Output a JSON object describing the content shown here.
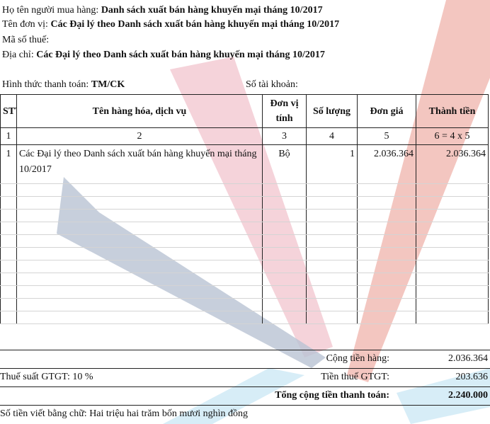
{
  "buyer": {
    "name_label": "Họ tên người mua hàng:",
    "name_value": "Danh sách xuất bán hàng khuyến mại tháng 10/2017",
    "unit_label": "Tên đơn vị:",
    "unit_value": "Các Đại lý theo Danh sách xuất bán hàng khuyến mại tháng 10/2017",
    "tax_label": "Mã số thuế:",
    "address_label": "Địa chỉ:",
    "address_value": "Các Đại lý theo Danh sách xuất bán hàng khuyến mại tháng 10/2017",
    "payment_label": "Hình thức thanh toán:",
    "payment_value": "TM/CK",
    "account_label": "Số tài khoản:"
  },
  "table": {
    "headers": {
      "stt": "STT",
      "name": "Tên hàng hóa, dịch vụ",
      "unit_line1": "Đơn vị",
      "unit_line2": "tính",
      "qty": "Số lượng",
      "price": "Đơn giá",
      "amount": "Thành tiền"
    },
    "col_numbers": [
      "1",
      "2",
      "3",
      "4",
      "5",
      "6 = 4 x 5"
    ],
    "rows": [
      {
        "stt": "1",
        "name": "Các Đại lý theo Danh sách xuất bán hàng khuyến mại tháng 10/2017",
        "unit": "Bộ",
        "qty": "1",
        "price": "2.036.364",
        "amount": "2.036.364"
      }
    ]
  },
  "totals": {
    "subtotal_label": "Cộng tiền hàng:",
    "subtotal_value": "2.036.364",
    "vat_rate_label": "Thuế suất GTGT:",
    "vat_rate_value": "10 %",
    "vat_label": "Tiền thuế GTGT:",
    "vat_value": "203.636",
    "grand_label": "Tổng cộng tiền thanh toán:",
    "grand_value": "2.240.000"
  },
  "amount_in_words": {
    "label": "Số tiền viết bằng chữ:",
    "value": "Hai triệu hai trăm bốn mươi nghìn đồng"
  },
  "colors": {
    "watermark_pink": "#f2c4cd",
    "watermark_red": "#eca79e",
    "watermark_blue": "#b9c3d3",
    "watermark_cyan": "#cde9f5"
  }
}
